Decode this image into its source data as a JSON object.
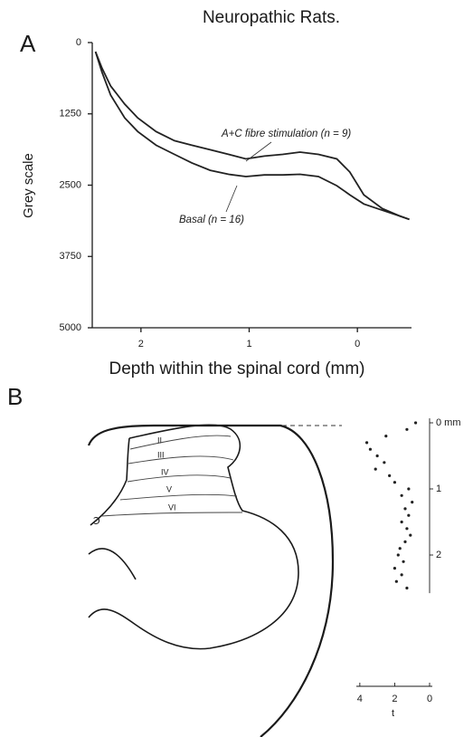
{
  "chart_data": [
    {
      "type": "line",
      "title": "Neuropathic Rats.",
      "panel_label": "A",
      "y_label": "Grey scale",
      "x_label": "Depth within the spinal cord (mm)",
      "x": [
        2.42,
        2.36,
        2.28,
        2.15,
        2.03,
        1.86,
        1.69,
        1.53,
        1.36,
        1.19,
        1.03,
        0.86,
        0.69,
        0.53,
        0.36,
        0.19,
        0.07,
        -0.06,
        -0.23,
        -0.39,
        -0.48
      ],
      "series": [
        {
          "name": "A+C fibre stimulation (n = 9)",
          "color": "#222222",
          "values": [
            160,
            450,
            760,
            1080,
            1320,
            1560,
            1720,
            1800,
            1880,
            1960,
            2040,
            1990,
            1960,
            1920,
            1960,
            2040,
            2270,
            2670,
            2910,
            3040,
            3100
          ]
        },
        {
          "name": "Basal (n = 16)",
          "color": "#222222",
          "values": [
            160,
            520,
            920,
            1320,
            1560,
            1800,
            1960,
            2110,
            2240,
            2310,
            2350,
            2320,
            2320,
            2310,
            2350,
            2510,
            2670,
            2830,
            2940,
            3040,
            3100
          ]
        }
      ],
      "xlim": [
        -0.5,
        2.45
      ],
      "x_reversed": true,
      "xticks": [
        2,
        1,
        0
      ],
      "ylim": [
        0,
        5000
      ],
      "y_inverted": true,
      "yticks": [
        0,
        1250,
        2500,
        3750,
        5000
      ]
    },
    {
      "type": "scatter",
      "color": "#222222",
      "x_label": "t",
      "x": [
        0.8,
        1.3,
        2.5,
        3.6,
        3.4,
        3.0,
        2.6,
        3.1,
        2.3,
        2.0,
        1.2,
        1.6,
        1.0,
        1.4,
        1.2,
        1.6,
        1.3,
        1.1,
        1.4,
        1.7,
        1.8,
        1.5,
        2.0,
        1.6,
        1.9,
        1.3
      ],
      "y": [
        0,
        0.1,
        0.2,
        0.3,
        0.4,
        0.5,
        0.6,
        0.7,
        0.8,
        0.9,
        1.0,
        1.1,
        1.2,
        1.3,
        1.4,
        1.5,
        1.6,
        1.7,
        1.8,
        1.9,
        2.0,
        2.1,
        2.2,
        2.3,
        2.4,
        2.5
      ],
      "xlim": [
        0,
        4.2
      ],
      "x_reversed": true,
      "xticks": [
        4,
        2,
        0
      ],
      "ylim": [
        0,
        2.55
      ],
      "y_inverted": true,
      "yticks": [
        {
          "value": 0,
          "label": "0 mm"
        },
        1,
        2
      ]
    }
  ],
  "figure": {
    "panel_b_label": "B",
    "laminae": [
      "II",
      "III",
      "IV",
      "V",
      "VI"
    ]
  }
}
